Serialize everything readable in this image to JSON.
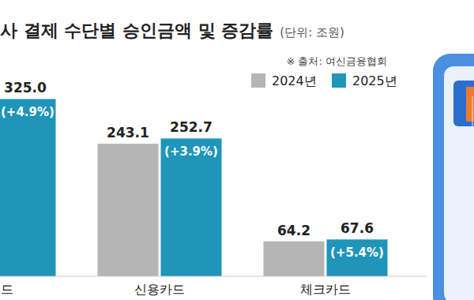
{
  "chart_data": {
    "type": "bar",
    "title": "사 결제 수단별 승인금액 및 증감률",
    "subtitle": "(단위: 조원)",
    "source": "※ 출처: 여신금융협회",
    "categories": [
      "드",
      "신용카드",
      "체크카드"
    ],
    "series": [
      {
        "name": "2024년",
        "color": "#b5b5b5",
        "values": [
          null,
          243.1,
          64.2
        ]
      },
      {
        "name": "2025년",
        "color": "#1f95b9",
        "values": [
          325.0,
          252.7,
          67.6
        ],
        "value_labels": [
          "325.0",
          "252.7",
          "67.6"
        ],
        "growth": [
          4.9,
          3.9,
          5.4
        ],
        "growth_labels": [
          "(+4.9%)",
          "(+3.9%)",
          "(+5.4%)"
        ]
      }
    ],
    "ylim": [
      0,
      330
    ],
    "yticks": [],
    "grid": false,
    "tick_labels": "x",
    "data_labels": true,
    "legend": "top-right"
  }
}
